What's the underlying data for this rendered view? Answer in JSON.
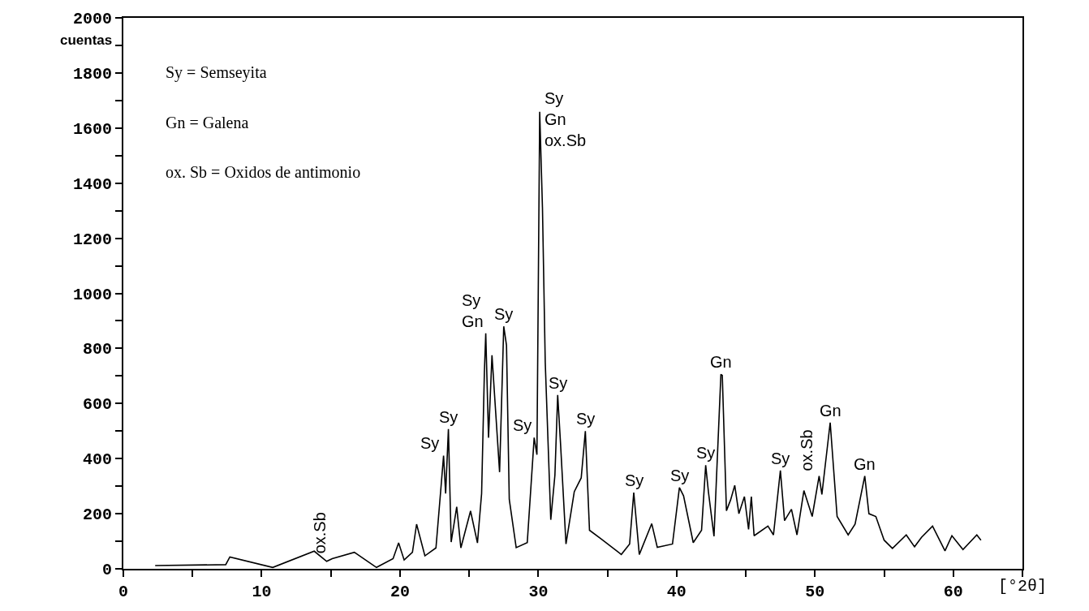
{
  "chart_data": {
    "type": "line",
    "xlabel": "[°2θ]",
    "ylabel": "cuentas",
    "xlim": [
      0,
      65
    ],
    "ylim": [
      0,
      2000
    ],
    "xticks": [
      0,
      {
        "value": 5,
        "label": null
      },
      10,
      {
        "value": 15,
        "label": null
      },
      20,
      {
        "value": 25,
        "label": null
      },
      30,
      {
        "value": 35,
        "label": null
      },
      40,
      {
        "value": 45,
        "label": null
      },
      50,
      {
        "value": 55,
        "label": null
      },
      60,
      {
        "value": 65,
        "label": null
      }
    ],
    "yticks": [
      0,
      {
        "value": 100,
        "label": null
      },
      200,
      {
        "value": 300,
        "label": null
      },
      400,
      {
        "value": 500,
        "label": null
      },
      600,
      {
        "value": 700,
        "label": null
      },
      800,
      {
        "value": 900,
        "label": null
      },
      1000,
      {
        "value": 1100,
        "label": null
      },
      1200,
      {
        "value": 1300,
        "label": null
      },
      1400,
      {
        "value": 1500,
        "label": null
      },
      1600,
      {
        "value": 1700,
        "label": null
      },
      1800,
      {
        "value": 1900,
        "label": null
      },
      2000
    ],
    "marker": "none",
    "line_style": "solid",
    "series": [
      {
        "color": "#000000",
        "x": [
          2.3,
          7.4,
          7.7,
          10.8,
          13.8,
          14.7,
          15.1,
          16.7,
          18.3,
          19.5,
          19.9,
          20.3,
          20.9,
          21.2,
          21.8,
          22.6,
          23.0,
          23.15,
          23.3,
          23.5,
          23.7,
          24.1,
          24.4,
          25.1,
          25.6,
          25.9,
          26.1,
          26.2,
          26.4,
          26.65,
          27.2,
          27.5,
          27.7,
          27.9,
          28.4,
          29.2,
          29.7,
          29.9,
          30.1,
          30.3,
          30.5,
          30.9,
          31.2,
          31.4,
          31.6,
          32.0,
          32.6,
          33.1,
          33.4,
          33.7,
          34.5,
          36.0,
          36.6,
          36.9,
          37.3,
          38.2,
          38.6,
          39.7,
          40.2,
          40.5,
          41.2,
          41.8,
          42.1,
          42.3,
          42.7,
          43.2,
          43.3,
          43.6,
          43.9,
          44.2,
          44.5,
          44.9,
          45.2,
          45.4,
          45.6,
          46.6,
          47.0,
          47.5,
          47.8,
          48.3,
          48.7,
          49.2,
          49.8,
          50.3,
          50.5,
          51.1,
          51.6,
          52.4,
          52.9,
          53.6,
          53.9,
          54.4,
          55.0,
          55.6,
          56.6,
          57.2,
          57.7,
          58.5,
          59.4,
          59.9,
          60.7,
          61.7,
          62.0
        ],
        "values": [
          12,
          15,
          43,
          5,
          64,
          27,
          37,
          60,
          5,
          37,
          94,
          32,
          60,
          162,
          47,
          76,
          318,
          411,
          273,
          507,
          97,
          225,
          76,
          210,
          94,
          273,
          712,
          855,
          476,
          775,
          351,
          880,
          811,
          252,
          77,
          95,
          476,
          414,
          1659,
          1310,
          750,
          178,
          340,
          631,
          460,
          90,
          280,
          330,
          500,
          140,
          110,
          52,
          90,
          277,
          52,
          164,
          78,
          90,
          295,
          265,
          95,
          140,
          376,
          278,
          118,
          706,
          702,
          211,
          250,
          303,
          200,
          262,
          143,
          262,
          120,
          155,
          123,
          357,
          175,
          216,
          123,
          284,
          190,
          337,
          270,
          531,
          190,
          123,
          162,
          337,
          200,
          190,
          104,
          74,
          123,
          80,
          114,
          155,
          65,
          120,
          70,
          123,
          104
        ]
      }
    ],
    "annotations": [
      "Sy = Semseyita",
      "Gn = Galena",
      "ox. Sb = Oxidos de antimonio",
      {
        "text": "ox.Sb",
        "x": 15.1,
        "y": 37
      },
      {
        "text": "Sy",
        "x": 23.0,
        "y": 411
      },
      {
        "text": "Sy",
        "x": 23.5,
        "y": 507
      },
      {
        "text": "Sy\nGn",
        "x": 26.2,
        "y": 855
      },
      {
        "text": "Sy",
        "x": 27.5,
        "y": 880
      },
      {
        "text": "Sy",
        "x": 29.7,
        "y": 476
      },
      {
        "text": "Sy\nGn\nox.Sb",
        "x": 30.1,
        "y": 1659
      },
      {
        "text": "Sy",
        "x": 31.4,
        "y": 631
      },
      {
        "text": "Sy",
        "x": 33.4,
        "y": 500
      },
      {
        "text": "Sy",
        "x": 36.9,
        "y": 277
      },
      {
        "text": "Sy",
        "x": 40.2,
        "y": 295
      },
      {
        "text": "Sy",
        "x": 42.1,
        "y": 376
      },
      {
        "text": "Gn",
        "x": 43.2,
        "y": 706
      },
      {
        "text": "Sy",
        "x": 47.5,
        "y": 357
      },
      {
        "text": "ox.Sb",
        "x": 50.3,
        "y": 337
      },
      {
        "text": "Gn",
        "x": 51.1,
        "y": 531
      },
      {
        "text": "Gn",
        "x": 53.6,
        "y": 337
      }
    ]
  }
}
